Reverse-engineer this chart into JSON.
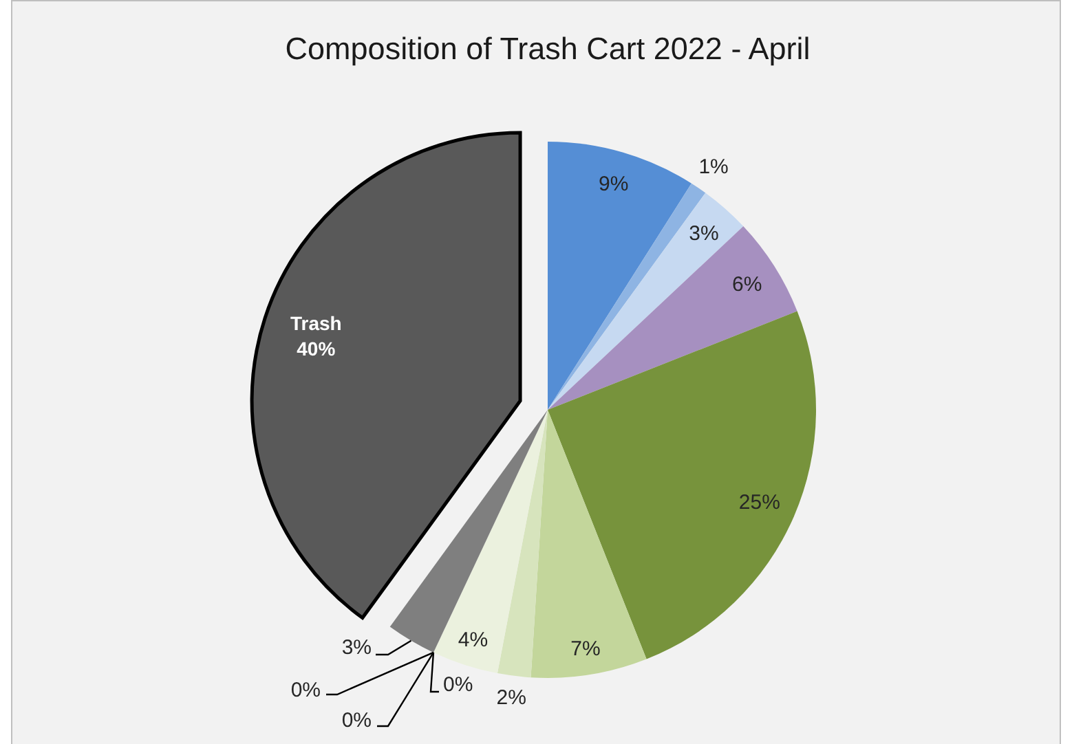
{
  "chart_data": {
    "type": "pie",
    "title": "Composition of Trash Cart 2022 - April",
    "categories": [
      null,
      null,
      null,
      null,
      null,
      null,
      null,
      null,
      null,
      null,
      null,
      null,
      "Trash"
    ],
    "values": [
      9,
      1,
      3,
      6,
      25,
      7,
      2,
      4,
      0,
      0,
      0,
      3,
      40
    ],
    "colors": [
      "#558ed5",
      "#8eb4e3",
      "#c6d9f1",
      "#a690c0",
      "#77933c",
      "#c3d69b",
      "#d7e4bd",
      "#ebf1de",
      "#bfbfbf",
      "#a6a6a6",
      "#d9d9d9",
      "#7f7f7f",
      "#595959"
    ],
    "value_labels": [
      "9%",
      "1%",
      "3%",
      "6%",
      "25%",
      "7%",
      "2%",
      "4%",
      "0%",
      "0%",
      "0%",
      "3%",
      "40%"
    ]
  }
}
